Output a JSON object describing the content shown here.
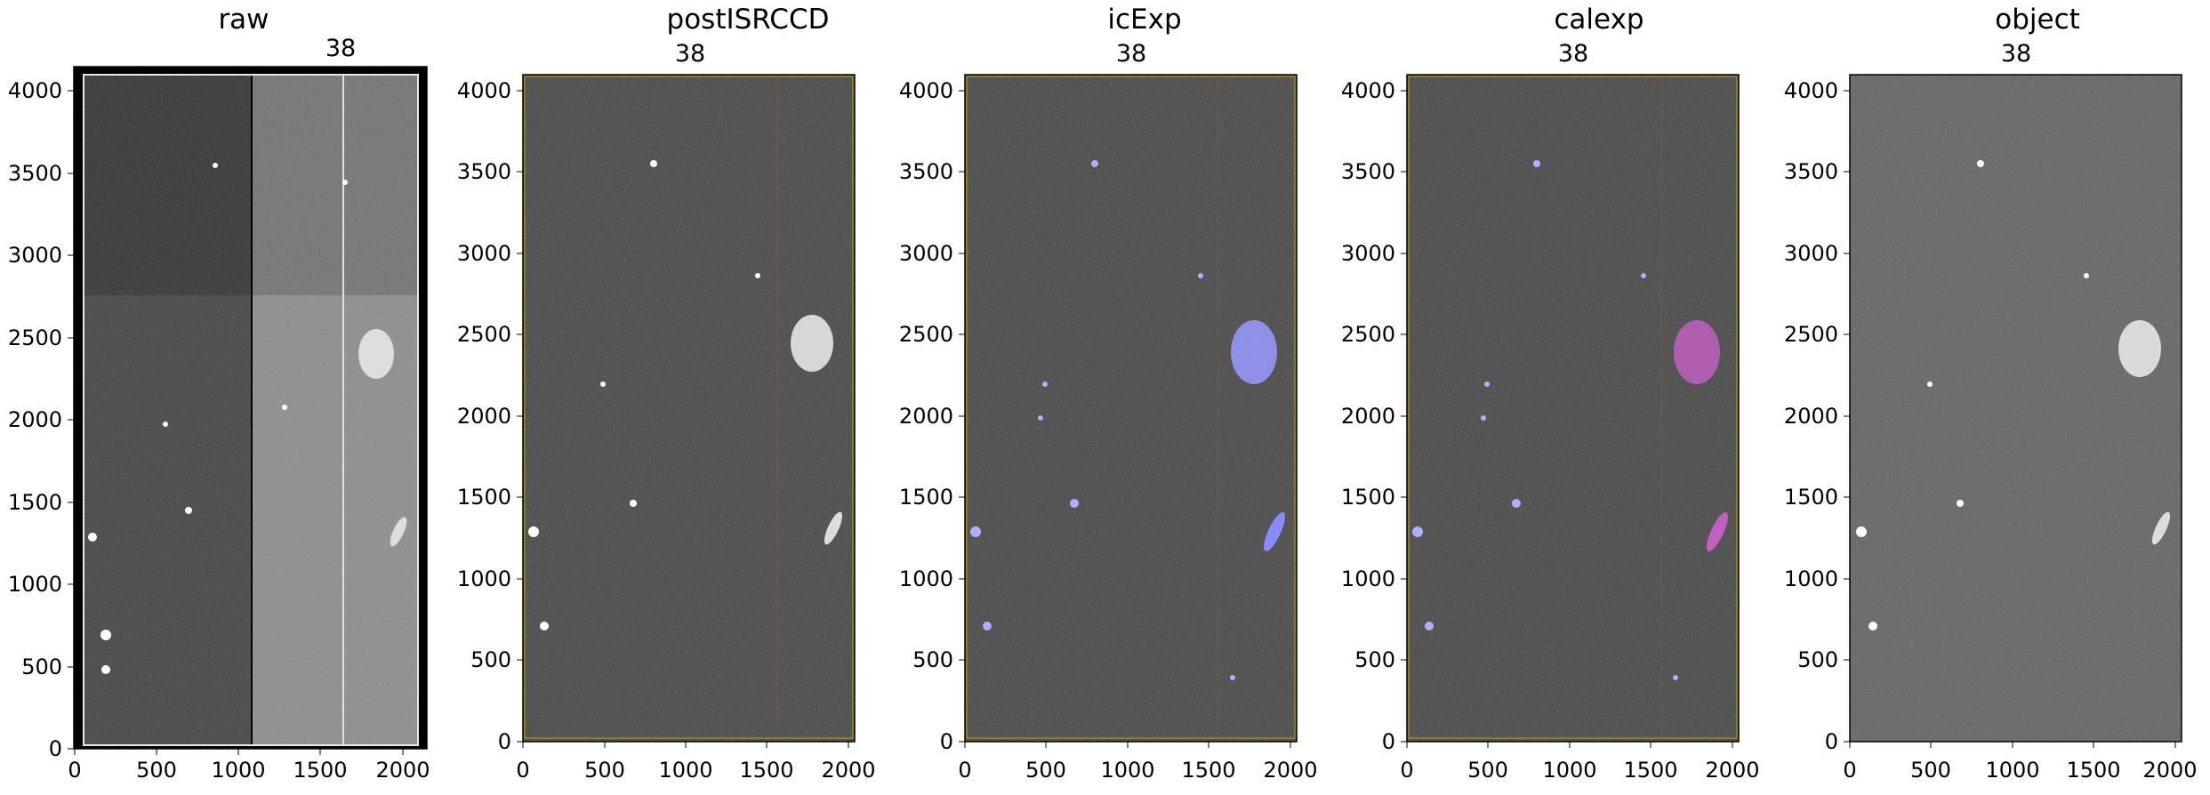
{
  "chart_data": [
    {
      "type": "heatmap",
      "title": "raw",
      "label": "38",
      "xlim": [
        0,
        2150
      ],
      "ylim": [
        0,
        4150
      ],
      "xticks": [
        "0",
        "500",
        "1000",
        "1500",
        "2000"
      ],
      "yticks": [
        "0",
        "500",
        "1000",
        "1500",
        "2000",
        "2500",
        "3000",
        "3500",
        "4000"
      ]
    },
    {
      "type": "heatmap",
      "title": "postISRCCD",
      "label": "38",
      "xlim": [
        0,
        2040
      ],
      "ylim": [
        0,
        4096
      ],
      "xticks": [
        "0",
        "500",
        "1000",
        "1500",
        "2000"
      ],
      "yticks": [
        "0",
        "500",
        "1000",
        "1500",
        "2000",
        "2500",
        "3000",
        "3500",
        "4000"
      ]
    },
    {
      "type": "heatmap",
      "title": "icExp",
      "label": "38",
      "xlim": [
        0,
        2040
      ],
      "ylim": [
        0,
        4096
      ],
      "xticks": [
        "0",
        "500",
        "1000",
        "1500",
        "2000"
      ],
      "yticks": [
        "0",
        "500",
        "1000",
        "1500",
        "2000",
        "2500",
        "3000",
        "3500",
        "4000"
      ]
    },
    {
      "type": "heatmap",
      "title": "calexp",
      "label": "38",
      "xlim": [
        0,
        2040
      ],
      "ylim": [
        0,
        4096
      ],
      "xticks": [
        "0",
        "500",
        "1000",
        "1500",
        "2000"
      ],
      "yticks": [
        "0",
        "500",
        "1000",
        "1500",
        "2000",
        "2500",
        "3000",
        "3500",
        "4000"
      ]
    },
    {
      "type": "heatmap",
      "title": "object",
      "label": "38",
      "xlim": [
        0,
        2040
      ],
      "ylim": [
        0,
        4096
      ],
      "xticks": [
        "0",
        "500",
        "1000",
        "1500",
        "2000"
      ],
      "yticks": [
        "0",
        "500",
        "1000",
        "1500",
        "2000",
        "2500",
        "3000",
        "3500",
        "4000"
      ]
    }
  ]
}
